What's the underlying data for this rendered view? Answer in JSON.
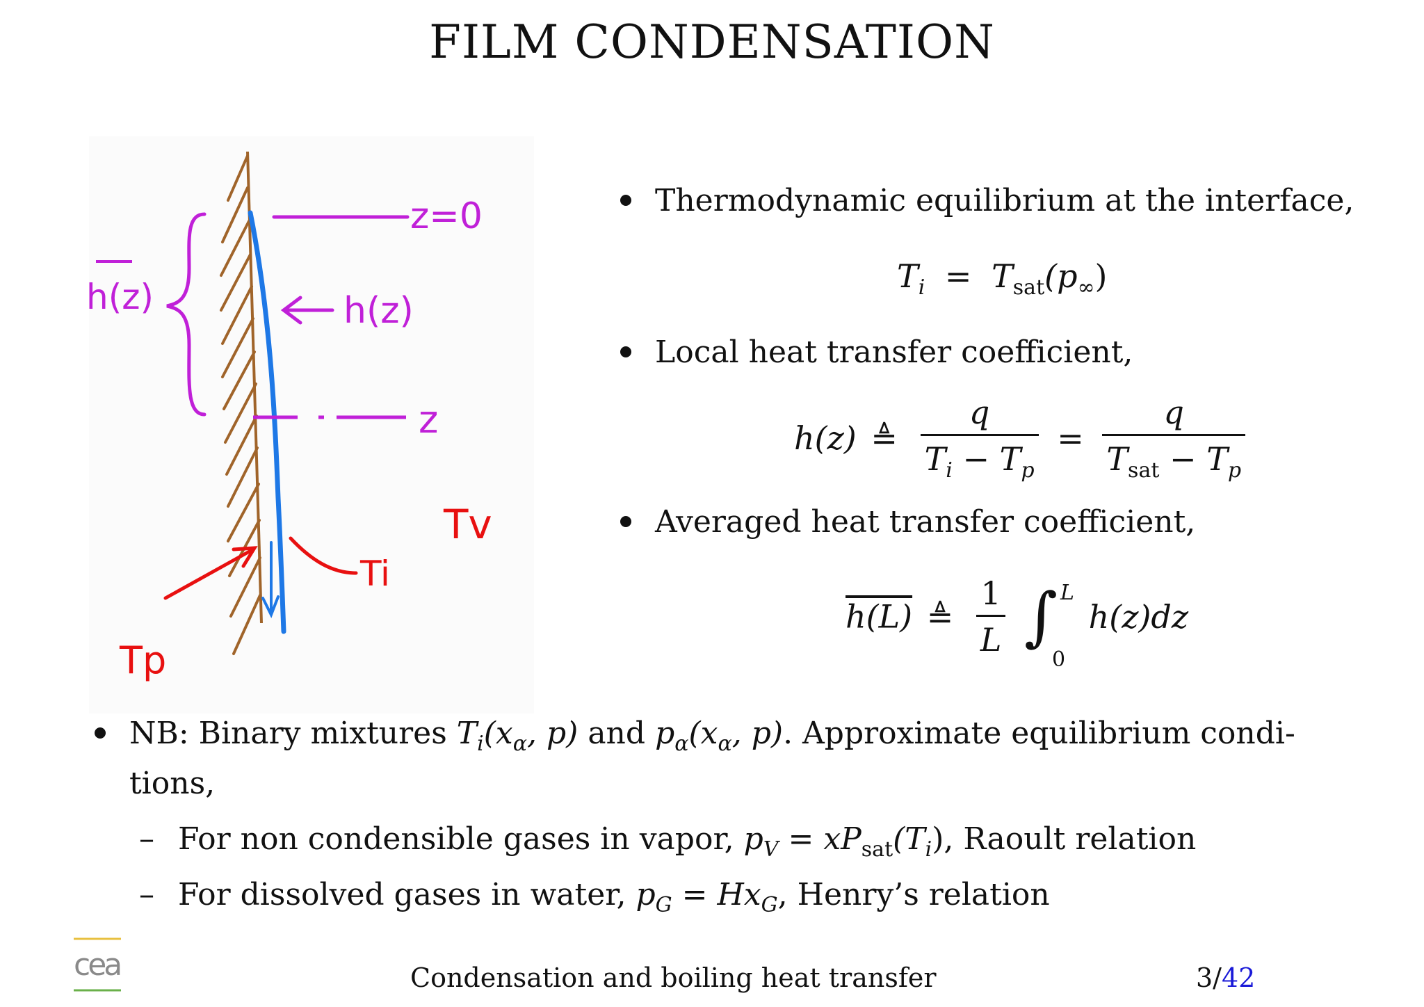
{
  "slide": {
    "title": "FILM CONDENSATION",
    "sketch_labels": {
      "z0": "z=0",
      "h_local": "h(z)",
      "h_avg": "h(z)",
      "z": "z",
      "Tv": "Tv",
      "Ti": "Ti",
      "Tp": "Tp"
    },
    "bullets": [
      "Thermodynamic equilibrium at the interface,",
      "Local heat transfer coefficient,",
      "Averaged heat transfer coefficient,"
    ],
    "eq1": {
      "lhs": "T",
      "lhs_sub": "i",
      "eq": "=",
      "rhs": "T",
      "rhs_sub": "sat",
      "arg": "(p",
      "arg_sub": "∞",
      "close": ")"
    },
    "eq2": {
      "lhs": "h(z)",
      "def": "≜",
      "num1": "q",
      "den1_a": "T",
      "den1_a_sub": "i",
      "den1_op": "−",
      "den1_b": "T",
      "den1_b_sub": "p",
      "eq": "=",
      "num2": "q",
      "den2_a": "T",
      "den2_a_sub": "sat",
      "den2_op": "−",
      "den2_b": "T",
      "den2_b_sub": "p"
    },
    "eq3": {
      "lhs": "h(L)",
      "def": "≜",
      "num": "1",
      "den": "L",
      "integral": "∫",
      "upper": "L",
      "lower": "0",
      "integrand": "h(z)dz"
    },
    "nb": {
      "line1_a": "NB: Binary mixtures",
      "line1_b": "and",
      "line1_c": ". Approximate equilibrium condi-",
      "line2": "tions,",
      "ti_expr": "T",
      "ti_sub": "i",
      "ti_arg": "(x",
      "ti_arg_sub": "α",
      "ti_arg_rest": ", p)",
      "pa_expr": "p",
      "pa_sub": "α",
      "pa_arg": "(x",
      "pa_arg_sub": "α",
      "pa_arg_rest": ", p)"
    },
    "sub_bullets": [
      {
        "dash": "–",
        "pre": "For non condensible gases in vapor,",
        "m1": "p",
        "m1_sub": "V",
        "eq": "=",
        "m2": "xP",
        "m2_sub": "sat",
        "m2_arg": "(T",
        "m2_arg_sub": "i",
        "m2_close": ")",
        "post": ", Raoult relation"
      },
      {
        "dash": "–",
        "pre": "For dissolved gases in water,",
        "m1": "p",
        "m1_sub": "G",
        "eq": "=",
        "m2": "Hx",
        "m2_sub": "G",
        "post": ", Henry’s relation"
      }
    ],
    "footer": {
      "text": "Condensation and boiling heat transfer",
      "page": "3/",
      "total": "42"
    },
    "logo_text": "cea",
    "colors": {
      "wall": "#a0642a",
      "film": "#1e78e6",
      "label_purple": "#c020d8",
      "label_red": "#e81010",
      "link_blue": "#1a1ad8"
    }
  }
}
